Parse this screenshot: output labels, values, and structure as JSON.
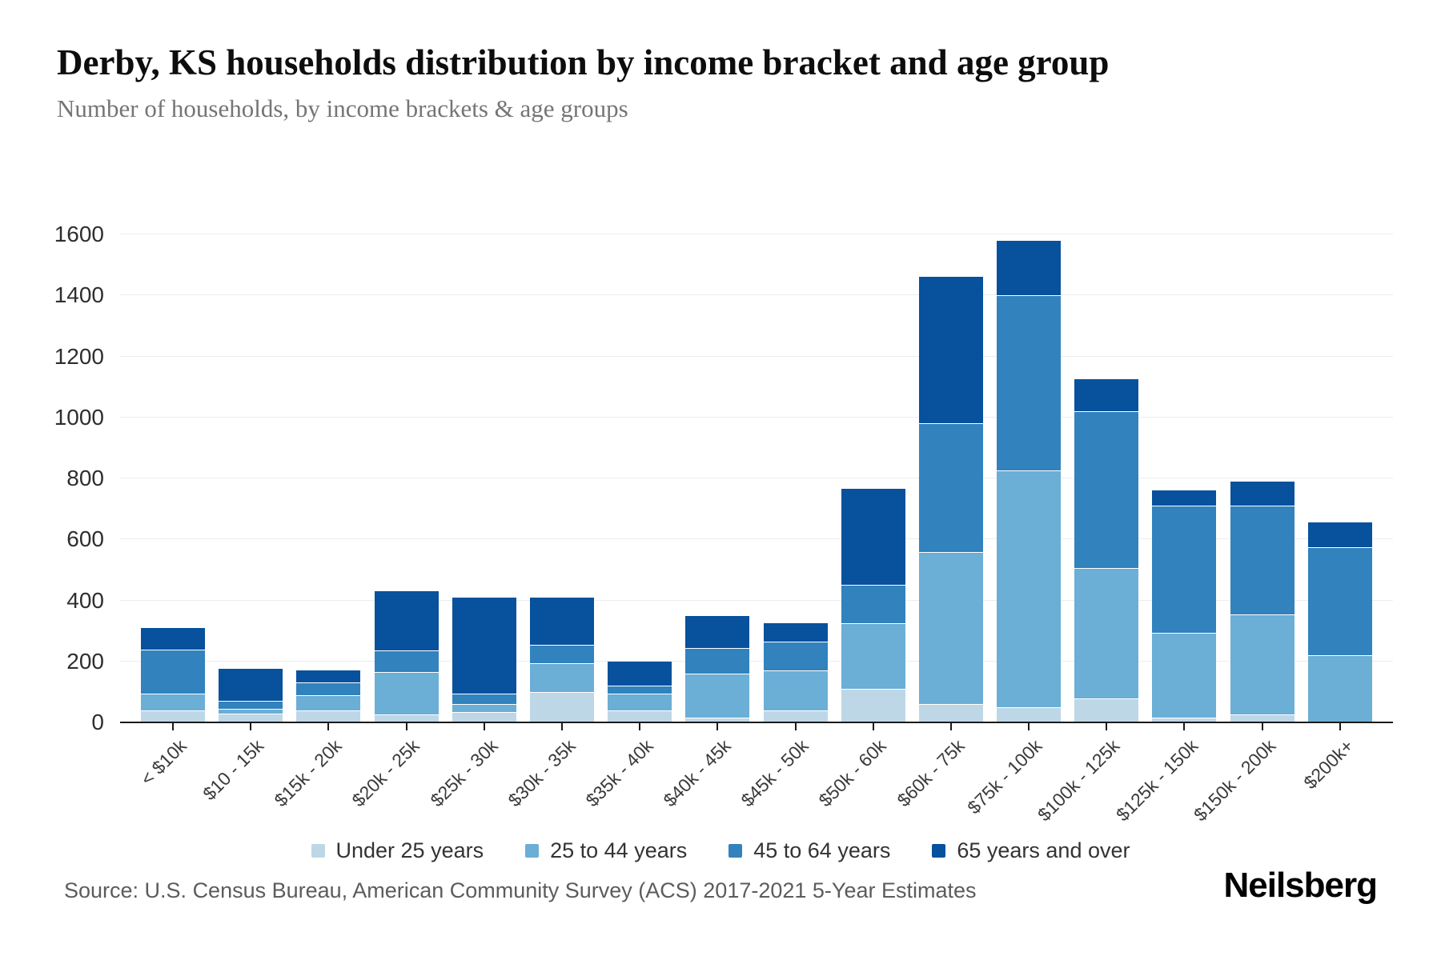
{
  "title": "Derby, KS households distribution by income bracket and age group",
  "subtitle": "Number of households, by income brackets & age groups",
  "source": "Source: U.S. Census Bureau, American Community Survey (ACS) 2017-2021 5-Year Estimates",
  "logo": "Neilsberg",
  "chart_data": {
    "type": "bar",
    "stacked": true,
    "title": "Derby, KS households distribution by income bracket and age group",
    "xlabel": "",
    "ylabel": "Number of households",
    "ylim": [
      0,
      1600
    ],
    "ytick_step": 200,
    "grid": true,
    "legend_position": "bottom",
    "categories": [
      "< $10k",
      "$10 - 15k",
      "$15k - 20k",
      "$20k - 25k",
      "$25k - 30k",
      "$30k - 35k",
      "$35k - 40k",
      "$40k - 45k",
      "$45k - 50k",
      "$50k - 60k",
      "$60k - 75k",
      "$75k - 100k",
      "$100k - 125k",
      "$125k - 150k",
      "$150k - 200k",
      "$200k+"
    ],
    "series": [
      {
        "name": "Under 25 years",
        "color": "#bdd7e7",
        "values": [
          40,
          30,
          40,
          25,
          35,
          100,
          40,
          15,
          40,
          110,
          60,
          50,
          80,
          15,
          25,
          0
        ]
      },
      {
        "name": "25 to 44 years",
        "color": "#6baed6",
        "values": [
          55,
          15,
          50,
          140,
          25,
          95,
          55,
          145,
          130,
          215,
          500,
          775,
          425,
          280,
          330,
          220
        ]
      },
      {
        "name": "45 to 64 years",
        "color": "#3182bd",
        "values": [
          145,
          25,
          40,
          70,
          35,
          60,
          25,
          85,
          95,
          125,
          420,
          575,
          515,
          415,
          355,
          355
        ]
      },
      {
        "name": "65 years and over",
        "color": "#08519c",
        "values": [
          70,
          105,
          40,
          195,
          315,
          155,
          80,
          105,
          60,
          315,
          480,
          180,
          105,
          50,
          80,
          80
        ]
      }
    ],
    "totals": [
      310,
      175,
      170,
      430,
      410,
      410,
      200,
      350,
      325,
      765,
      1460,
      1580,
      1125,
      760,
      790,
      655
    ]
  }
}
